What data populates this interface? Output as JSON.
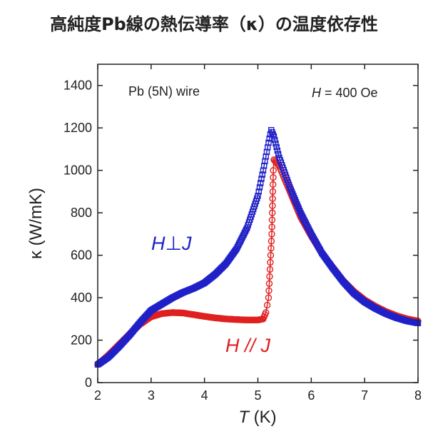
{
  "chart_data": {
    "type": "scatter",
    "title": "高純度Pb線の熱伝導率（κ）の温度依存性",
    "xlabel_var": "T",
    "xlabel_unit": " (K)",
    "ylabel": "κ (W/mK)",
    "xlim": [
      2,
      8
    ],
    "ylim": [
      0,
      1500
    ],
    "xticks": [
      "2",
      "3",
      "4",
      "5",
      "6",
      "7",
      "8"
    ],
    "yticks": [
      "0",
      "200",
      "400",
      "600",
      "800",
      "1000",
      "1200",
      "1400"
    ],
    "annotations": {
      "sample_label": "Pb (5N) wire",
      "field_var": "H",
      "field_value": " = 400 Oe"
    },
    "series": [
      {
        "name": "H∥J",
        "label_var1": "H",
        "label_op": " // ",
        "label_var2": "J",
        "color": "#e02020",
        "marker": "circle",
        "points": [
          [
            2.0,
            85
          ],
          [
            2.2,
            130
          ],
          [
            2.4,
            180
          ],
          [
            2.6,
            230
          ],
          [
            2.8,
            275
          ],
          [
            3.0,
            310
          ],
          [
            3.2,
            325
          ],
          [
            3.4,
            330
          ],
          [
            3.6,
            328
          ],
          [
            3.8,
            320
          ],
          [
            4.0,
            312
          ],
          [
            4.2,
            305
          ],
          [
            4.4,
            300
          ],
          [
            4.6,
            297
          ],
          [
            4.8,
            295
          ],
          [
            5.0,
            295
          ],
          [
            5.1,
            300
          ],
          [
            5.15,
            330
          ],
          [
            5.2,
            400
          ],
          [
            5.22,
            500
          ],
          [
            5.24,
            600
          ],
          [
            5.26,
            700
          ],
          [
            5.27,
            800
          ],
          [
            5.28,
            900
          ],
          [
            5.29,
            1000
          ],
          [
            5.3,
            1050
          ],
          [
            5.4,
            1020
          ],
          [
            5.6,
            900
          ],
          [
            5.8,
            780
          ],
          [
            6.0,
            690
          ],
          [
            6.2,
            610
          ],
          [
            6.4,
            545
          ],
          [
            6.6,
            480
          ],
          [
            6.8,
            430
          ],
          [
            7.0,
            390
          ],
          [
            7.2,
            360
          ],
          [
            7.4,
            335
          ],
          [
            7.6,
            315
          ],
          [
            7.8,
            300
          ],
          [
            8.0,
            290
          ]
        ]
      },
      {
        "name": "H⊥J",
        "label_var1": "H",
        "label_op": "⊥",
        "label_var2": "J",
        "color": "#2020c8",
        "marker": "square",
        "points": [
          [
            2.0,
            85
          ],
          [
            2.2,
            120
          ],
          [
            2.4,
            170
          ],
          [
            2.6,
            225
          ],
          [
            2.8,
            285
          ],
          [
            3.0,
            340
          ],
          [
            3.2,
            370
          ],
          [
            3.4,
            400
          ],
          [
            3.6,
            425
          ],
          [
            3.8,
            445
          ],
          [
            4.0,
            470
          ],
          [
            4.2,
            510
          ],
          [
            4.4,
            560
          ],
          [
            4.6,
            630
          ],
          [
            4.8,
            730
          ],
          [
            5.0,
            880
          ],
          [
            5.1,
            1000
          ],
          [
            5.2,
            1130
          ],
          [
            5.25,
            1190
          ],
          [
            5.3,
            1160
          ],
          [
            5.4,
            1060
          ],
          [
            5.6,
            920
          ],
          [
            5.8,
            800
          ],
          [
            6.0,
            700
          ],
          [
            6.2,
            610
          ],
          [
            6.4,
            540
          ],
          [
            6.6,
            475
          ],
          [
            6.8,
            420
          ],
          [
            7.0,
            380
          ],
          [
            7.2,
            350
          ],
          [
            7.4,
            325
          ],
          [
            7.6,
            305
          ],
          [
            7.8,
            290
          ],
          [
            8.0,
            280
          ]
        ]
      }
    ]
  }
}
